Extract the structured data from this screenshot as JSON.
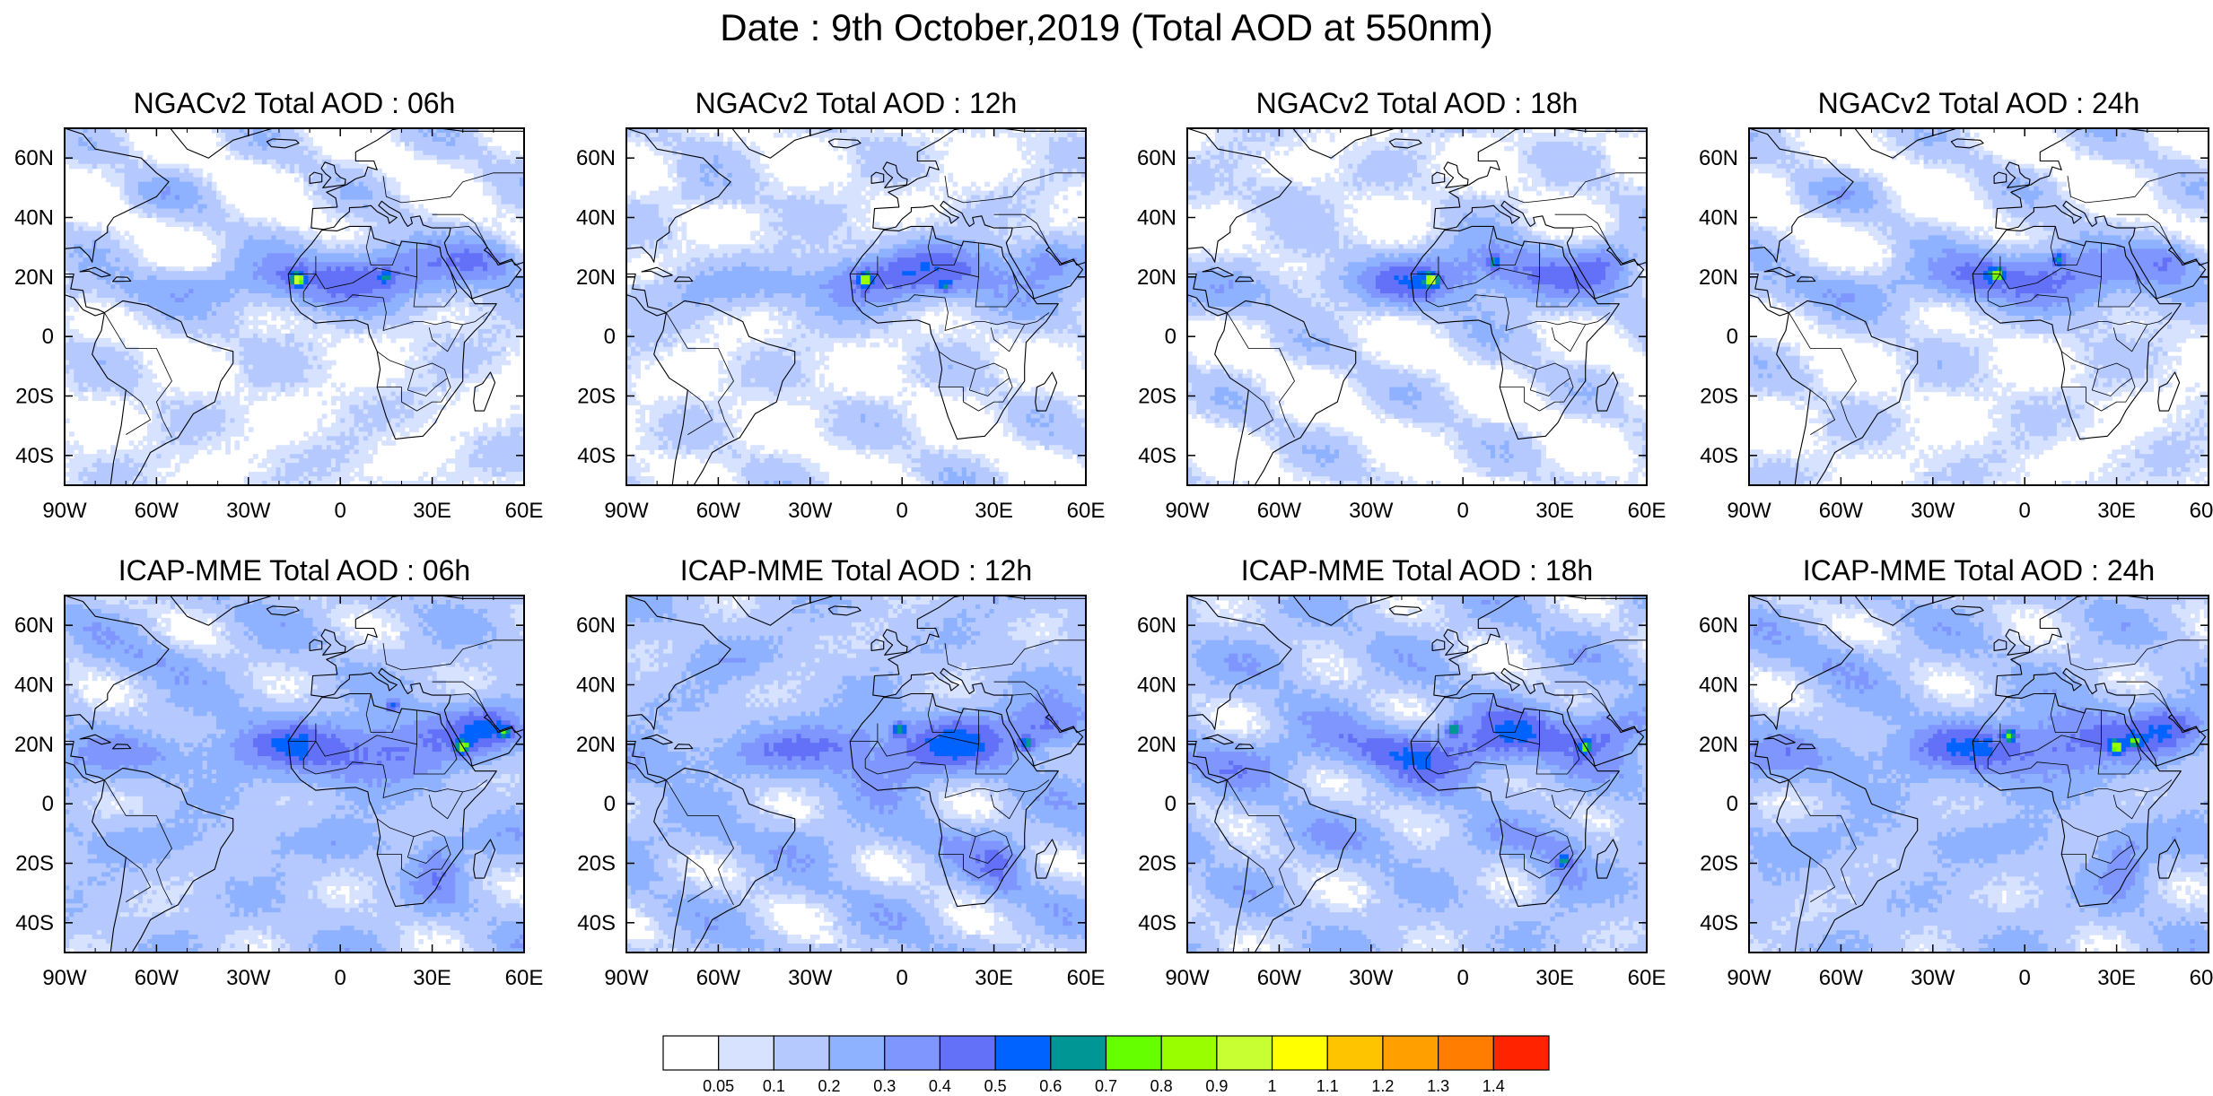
{
  "title": "Date : 9th October,2019 (Total AOD at 550nm)",
  "rows": [
    {
      "model": "NGACv2",
      "panels": [
        {
          "title": "NGACv2 Total AOD : 06h"
        },
        {
          "title": "NGACv2 Total AOD : 12h"
        },
        {
          "title": "NGACv2 Total AOD : 18h"
        },
        {
          "title": "NGACv2 Total AOD : 24h"
        }
      ]
    },
    {
      "model": "ICAP-MME",
      "panels": [
        {
          "title": "ICAP-MME Total AOD : 06h"
        },
        {
          "title": "ICAP-MME Total AOD : 12h"
        },
        {
          "title": "ICAP-MME Total AOD : 18h"
        },
        {
          "title": "ICAP-MME Total AOD : 24h"
        }
      ]
    }
  ],
  "map": {
    "lon_range": [
      -90,
      60
    ],
    "lat_range": [
      -50,
      70
    ],
    "lon_ticks": [
      {
        "v": -90,
        "label": "90W"
      },
      {
        "v": -60,
        "label": "60W"
      },
      {
        "v": -30,
        "label": "30W"
      },
      {
        "v": 0,
        "label": "0"
      },
      {
        "v": 30,
        "label": "30E"
      },
      {
        "v": 60,
        "label": "60E"
      }
    ],
    "lat_ticks": [
      {
        "v": 60,
        "label": "60N"
      },
      {
        "v": 40,
        "label": "40N"
      },
      {
        "v": 20,
        "label": "20N"
      },
      {
        "v": 0,
        "label": "0"
      },
      {
        "v": -20,
        "label": "20S"
      },
      {
        "v": -40,
        "label": "40S"
      }
    ],
    "land_outline_color": "#000000"
  },
  "colorbar": {
    "colors": [
      "#ffffff",
      "#d6e2ff",
      "#b5c9ff",
      "#8eb2ff",
      "#7f96ff",
      "#6370f8",
      "#0063ff",
      "#009696",
      "#66ff00",
      "#99ff00",
      "#c8ff33",
      "#ffff00",
      "#ffc400",
      "#ffa000",
      "#ff7d00",
      "#ff2300"
    ],
    "labels": [
      "0.05",
      "0.1",
      "0.2",
      "0.3",
      "0.4",
      "0.5",
      "0.6",
      "0.7",
      "0.8",
      "0.9",
      "1",
      "1.1",
      "1.2",
      "1.3",
      "1.4"
    ]
  }
}
